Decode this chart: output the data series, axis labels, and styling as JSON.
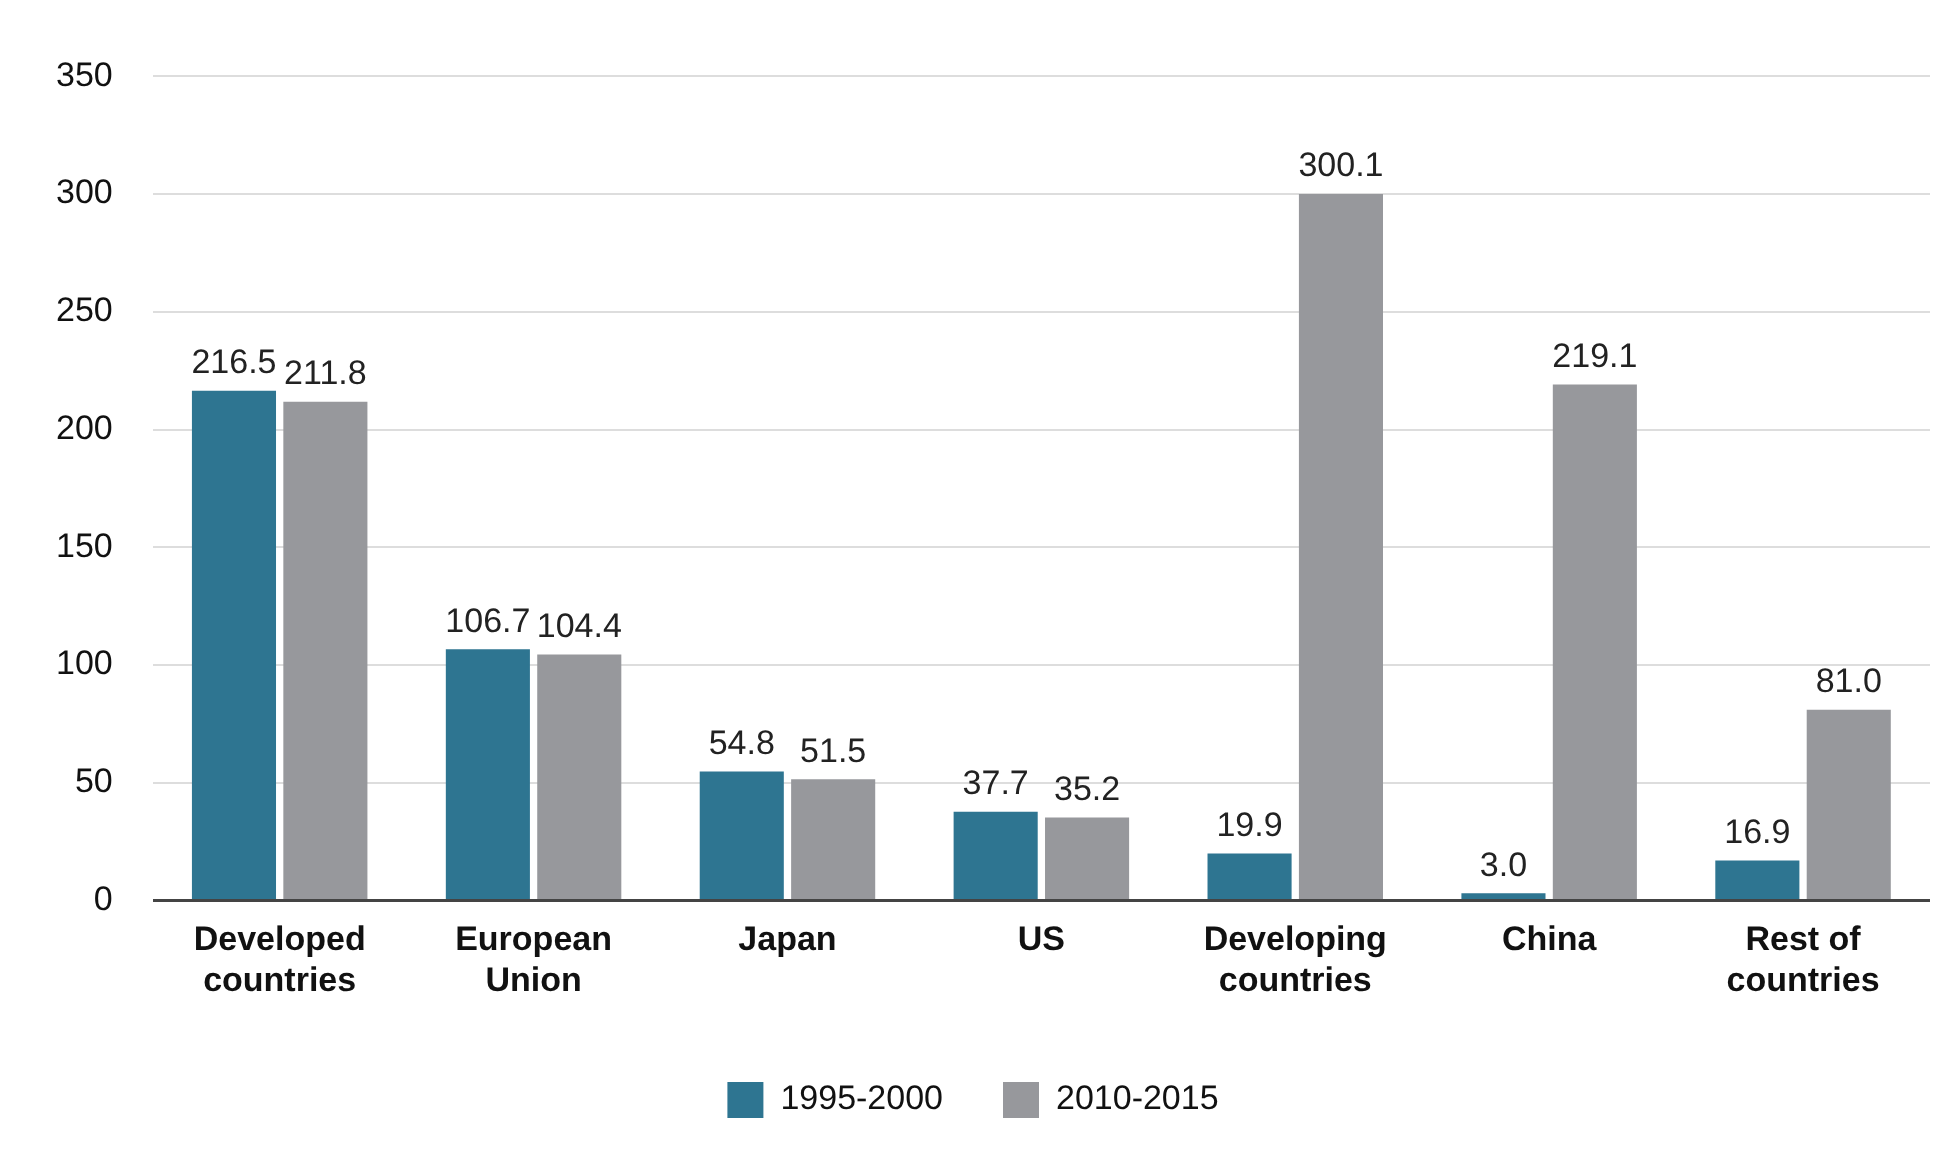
{
  "chart_data": {
    "type": "bar",
    "categories": [
      "Developed countries",
      "European Union",
      "Japan",
      "US",
      "Developing countries",
      "China",
      "Rest of countries"
    ],
    "series": [
      {
        "name": "1995-2000",
        "color": "#2e7591",
        "values": [
          216.5,
          106.7,
          54.8,
          37.7,
          19.9,
          3.0,
          16.9
        ],
        "value_labels": [
          "216.5",
          "106.7",
          "54.8",
          "37.7",
          "19.9",
          "3.0",
          "16.9"
        ]
      },
      {
        "name": "2010-2015",
        "color": "#97989c",
        "values": [
          211.8,
          104.4,
          51.5,
          35.2,
          300.1,
          219.1,
          81.0
        ],
        "value_labels": [
          "211.8",
          "104.4",
          "51.5",
          "35.2",
          "300.1",
          "219.1",
          "81.0"
        ]
      }
    ],
    "ylim": [
      0,
      350
    ],
    "yticks": [
      0,
      50,
      100,
      150,
      200,
      250,
      300,
      350
    ],
    "grid": "y",
    "legend": "bottom"
  }
}
